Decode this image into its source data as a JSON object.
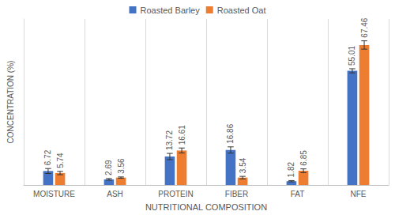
{
  "chart_data": {
    "type": "bar",
    "x_label": "NUTRITIONAL COMPOSITION",
    "y_label": "CONCENTRATION (%)",
    "categories": [
      "MOISTURE",
      "ASH",
      "PROTEIN",
      "FIBER",
      "FAT",
      "NFE"
    ],
    "series": [
      {
        "name": "Roasted Barley",
        "color": "#4472c4",
        "values": [
          6.72,
          2.69,
          13.72,
          16.86,
          1.82,
          55.01
        ],
        "errors": [
          1.2,
          0.4,
          1.5,
          1.5,
          0.3,
          1.0
        ]
      },
      {
        "name": "Roasted Oat",
        "color": "#ed7d31",
        "values": [
          5.74,
          3.56,
          16.61,
          3.54,
          6.85,
          67.46
        ],
        "errors": [
          0.8,
          0.3,
          1.2,
          0.6,
          0.9,
          2.0
        ]
      }
    ],
    "ylim": [
      0,
      80
    ],
    "grid": true,
    "legend": "top",
    "data_labels": true,
    "tick_labels": "x"
  }
}
